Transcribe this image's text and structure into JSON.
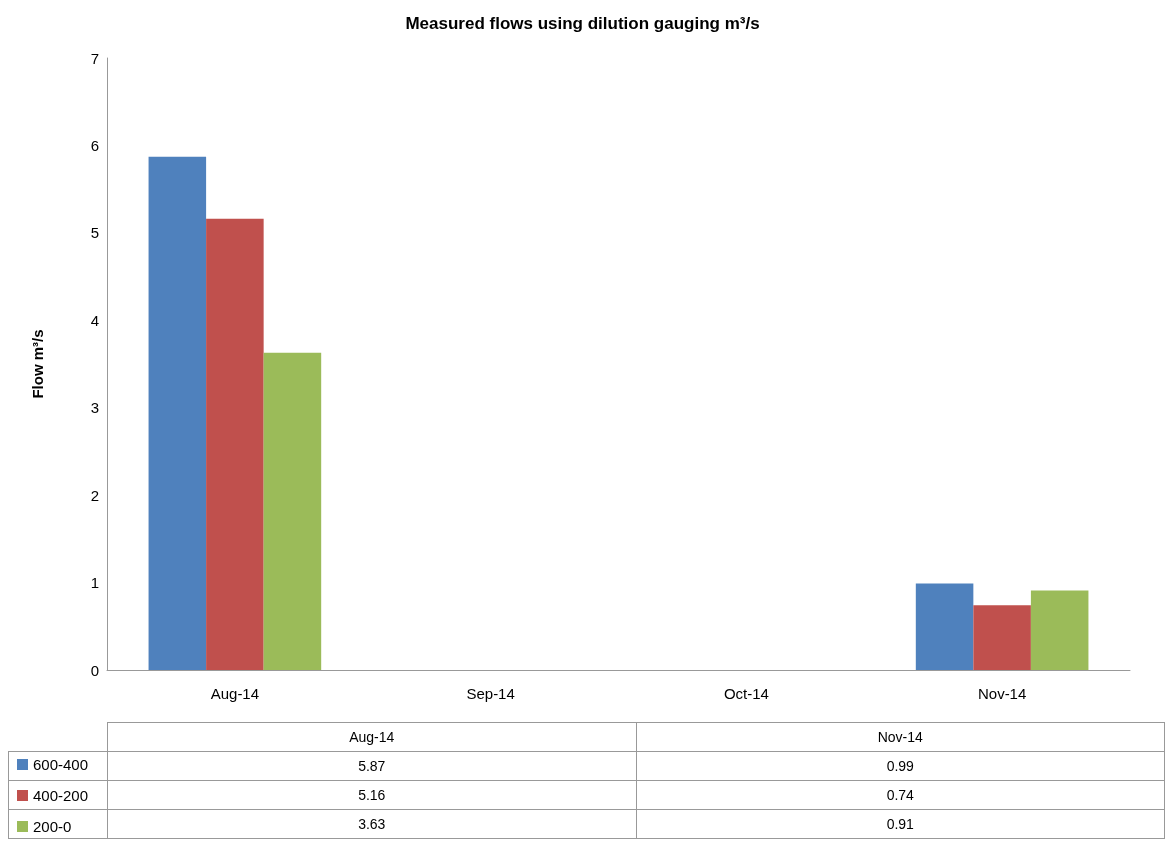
{
  "chart_data": {
    "type": "bar",
    "title": "Measured flows using dilution gauging m³/s",
    "ylabel": "Flow m³/s",
    "categories": [
      "Aug-14",
      "Sep-14",
      "Oct-14",
      "Nov-14"
    ],
    "series": [
      {
        "name": "600-400",
        "color": "#4f81bd",
        "values": [
          5.87,
          null,
          null,
          0.99
        ]
      },
      {
        "name": "400-200",
        "color": "#c0504d",
        "values": [
          5.16,
          null,
          null,
          0.74
        ]
      },
      {
        "name": "200-0",
        "color": "#9bbb59",
        "values": [
          3.63,
          null,
          null,
          0.91
        ]
      }
    ],
    "annotations": [
      "5.87",
      "0.99",
      "5.16",
      "0.74",
      "3.63",
      "0.91"
    ],
    "ylim": [
      0,
      7
    ],
    "yticks": [
      0,
      1,
      2,
      3,
      4,
      5,
      6,
      7
    ],
    "grid": false,
    "legend": "bottom left"
  }
}
